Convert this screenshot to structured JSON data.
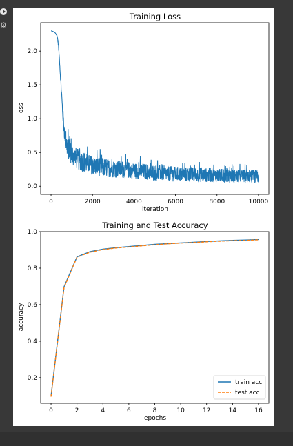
{
  "toolbar": {
    "run_icon": "play-circle-icon",
    "tune_icon": "tune-icon"
  },
  "colors": {
    "train": "#1f77b4",
    "test": "#ff7f0e"
  },
  "chart_data": [
    {
      "type": "line",
      "title": "Training Loss",
      "xlabel": "iteration",
      "ylabel": "loss",
      "xlim": [
        -500,
        10500
      ],
      "ylim": [
        -0.12,
        2.42
      ],
      "xticks": [
        0,
        2000,
        4000,
        6000,
        8000,
        10000
      ],
      "yticks": [
        0.0,
        0.5,
        1.0,
        1.5,
        2.0
      ],
      "grid": false,
      "series": [
        {
          "x": [
            0,
            100,
            200,
            300,
            350,
            400,
            450,
            500,
            550,
            600,
            650,
            700,
            750,
            800,
            900,
            1000,
            1200,
            1400,
            1600,
            2000,
            2500,
            3000,
            3500,
            4000,
            4500,
            5000,
            6000,
            7000,
            8000,
            9000,
            10000
          ],
          "y": [
            2.3,
            2.29,
            2.27,
            2.22,
            2.1,
            1.9,
            1.65,
            1.4,
            1.15,
            0.95,
            0.8,
            0.68,
            0.62,
            0.58,
            0.52,
            0.48,
            0.42,
            0.38,
            0.35,
            0.31,
            0.28,
            0.26,
            0.25,
            0.23,
            0.22,
            0.2,
            0.18,
            0.17,
            0.16,
            0.15,
            0.14
          ],
          "noise_band": [
            0.0,
            0.0,
            0.0,
            0.01,
            0.02,
            0.03,
            0.05,
            0.07,
            0.09,
            0.11,
            0.13,
            0.14,
            0.15,
            0.16,
            0.16,
            0.16,
            0.16,
            0.15,
            0.15,
            0.14,
            0.14,
            0.13,
            0.13,
            0.12,
            0.12,
            0.12,
            0.11,
            0.11,
            0.1,
            0.1,
            0.1
          ]
        }
      ]
    },
    {
      "type": "line",
      "title": "Training and Test Accuracy",
      "xlabel": "epochs",
      "ylabel": "accuracy",
      "xlim": [
        -0.8,
        16.8
      ],
      "ylim": [
        0.06,
        1.0
      ],
      "xticks": [
        0,
        2,
        4,
        6,
        8,
        10,
        12,
        14,
        16
      ],
      "yticks": [
        0.2,
        0.4,
        0.6,
        0.8,
        1.0
      ],
      "grid": false,
      "legend_position": "lower-right",
      "x": [
        0,
        1,
        2,
        3,
        4,
        5,
        6,
        7,
        8,
        9,
        10,
        11,
        12,
        13,
        14,
        15,
        16
      ],
      "series": [
        {
          "name": "train acc",
          "values": [
            0.098,
            0.698,
            0.862,
            0.89,
            0.904,
            0.912,
            0.918,
            0.924,
            0.93,
            0.934,
            0.938,
            0.942,
            0.946,
            0.949,
            0.952,
            0.954,
            0.957
          ]
        },
        {
          "name": "test acc",
          "values": [
            0.096,
            0.694,
            0.86,
            0.887,
            0.902,
            0.91,
            0.916,
            0.922,
            0.928,
            0.933,
            0.937,
            0.94,
            0.944,
            0.947,
            0.95,
            0.952,
            0.955
          ]
        }
      ]
    }
  ]
}
